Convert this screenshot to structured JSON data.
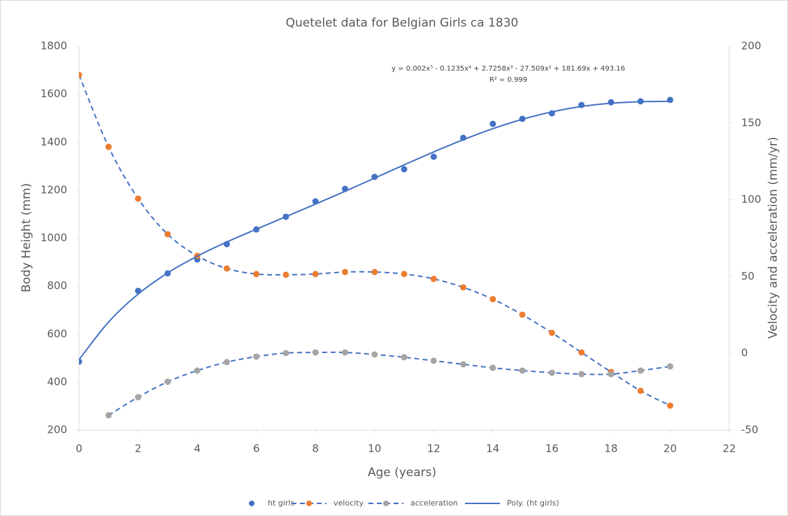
{
  "chart_data": {
    "type": "line",
    "title": "Quetelet data for Belgian Girls ca 1830",
    "x_label": "Age (years)",
    "y_label": "Body Height (mm)",
    "y2_label": "Velocity and acceleration  (mm/yr)",
    "annotations": [
      "y = 0.002x⁵ - 0.1235x⁴ + 2.7258x³ - 27.509x² + 181.69x + 493.16",
      "R² = 0.999"
    ],
    "x": [
      0,
      1,
      2,
      3,
      4,
      5,
      6,
      7,
      8,
      9,
      10,
      11,
      12,
      13,
      14,
      15,
      16,
      17,
      18,
      19,
      20
    ],
    "xlim": [
      0,
      22
    ],
    "xticks": [
      0,
      2,
      4,
      6,
      8,
      10,
      12,
      14,
      16,
      18,
      20,
      22
    ],
    "ylim": [
      200,
      1800
    ],
    "yticks": [
      200,
      400,
      600,
      800,
      1000,
      1200,
      1400,
      1600,
      1800
    ],
    "y2lim": [
      -50,
      200
    ],
    "y2ticks": [
      -50,
      0,
      50,
      100,
      150,
      200
    ],
    "grid": false,
    "legend": "bottom",
    "series": [
      {
        "name": "ht girls",
        "color": "#4472c4",
        "marker": true,
        "line": "none",
        "values": [
          485,
          null,
          780,
          853,
          911,
          975,
          1036,
          1089,
          1153,
          1205,
          1255,
          1287,
          1339,
          1418,
          1476,
          1497,
          1520,
          1555,
          1566,
          1570,
          1576
        ]
      },
      {
        "name": "velocity",
        "color": "#ed7d31",
        "marker": true,
        "line": "dashed",
        "line_color": "#4472c4",
        "axis": "y2",
        "values": [
          181.3,
          134.4,
          100.7,
          77.5,
          63.4,
          55.2,
          51.6,
          51.1,
          51.6,
          52.9,
          52.9,
          51.6,
          48.4,
          42.9,
          35.2,
          25.1,
          13.3,
          0.5,
          -12.2,
          -24.5,
          -34.1
        ]
      },
      {
        "name": "acceleration",
        "color": "#a5a5a5",
        "marker": true,
        "line": "dashed",
        "line_color": "#4472c4",
        "axis": "y2",
        "values": [
          null,
          -40.4,
          -28.6,
          -18.6,
          -11.3,
          -5.8,
          -2.2,
          0.1,
          0.5,
          0.5,
          -0.8,
          -2.6,
          -4.9,
          -7.2,
          -9.5,
          -11.3,
          -12.7,
          -13.6,
          -13.6,
          -11.3,
          -8.6
        ]
      },
      {
        "name": "Poly. (ht girls)",
        "color": "#4472c4",
        "marker": false,
        "line": "solid",
        "values": [
          493.2,
          650.0,
          766.4,
          854.7,
          924.7,
          983.7,
          1037.2,
          1089.1,
          1141.4,
          1195.1,
          1250.0,
          1305.1,
          1359.1,
          1410.0,
          1455.9,
          1495.1,
          1526.2,
          1548.5,
          1562.1,
          1568.3,
          1569.8
        ]
      }
    ]
  }
}
